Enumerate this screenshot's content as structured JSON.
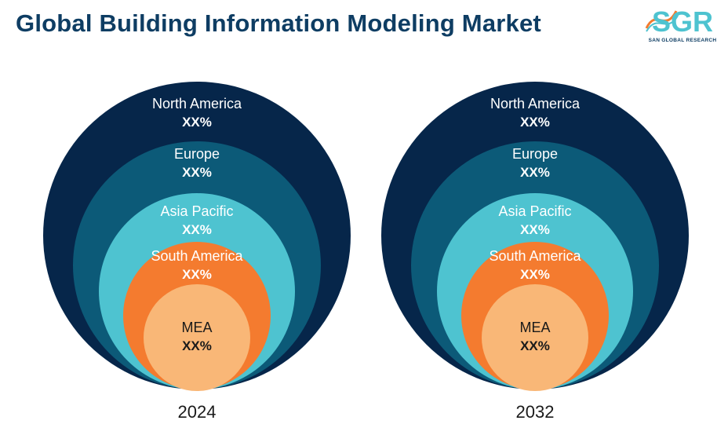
{
  "title": "Global Building Information Modeling Market",
  "logo": {
    "mark": "SGR",
    "subtitle": "SAN GLOBAL RESEARCH"
  },
  "colors": {
    "north_america": "#06264a",
    "europe": "#0c5a78",
    "asia_pacific": "#4ec3d0",
    "south_america": "#f47b2f",
    "mea": "#f9b777",
    "title": "#0e3d63"
  },
  "charts": [
    {
      "year": "2024",
      "segments": [
        {
          "name": "North America",
          "value": "XX%"
        },
        {
          "name": "Europe",
          "value": "XX%"
        },
        {
          "name": "Asia Pacific",
          "value": "XX%"
        },
        {
          "name": "South America",
          "value": "XX%"
        },
        {
          "name": "MEA",
          "value": "XX%"
        }
      ]
    },
    {
      "year": "2032",
      "segments": [
        {
          "name": "North America",
          "value": "XX%"
        },
        {
          "name": "Europe",
          "value": "XX%"
        },
        {
          "name": "Asia Pacific",
          "value": "XX%"
        },
        {
          "name": "South America",
          "value": "XX%"
        },
        {
          "name": "MEA",
          "value": "XX%"
        }
      ]
    }
  ]
}
